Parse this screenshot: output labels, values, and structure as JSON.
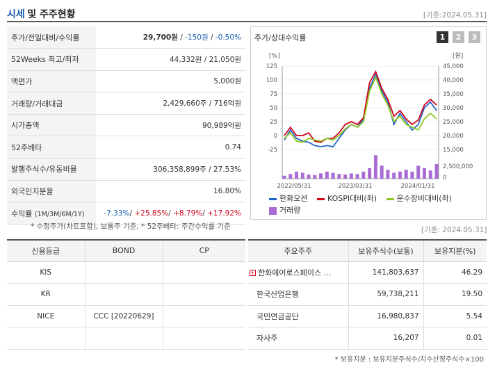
{
  "header": {
    "title_part1": "시세",
    "title_part2": "및 주주현황",
    "date": "[기준:2024.05.31]"
  },
  "price_rows": [
    {
      "label": "주가/전일대비/수익률",
      "value_a": "29,700원",
      "value_b": "-150원",
      "value_c": "-0.50%"
    },
    {
      "label": "52Weeks 최고/최저",
      "value": "44,332원 / 21,050원"
    },
    {
      "label": "액면가",
      "value": "5,000원"
    },
    {
      "label": "거래량/거래대금",
      "value": "2,429,660주 / 716억원"
    },
    {
      "label": "시가총액",
      "value": "90,989억원"
    },
    {
      "label": "52주베타",
      "value": "0.74"
    },
    {
      "label": "발행주식수/유동비율",
      "value": "306,358,899주 / 27.53%"
    },
    {
      "label": "외국인지분율",
      "value": "16.80%"
    },
    {
      "label": "수익률",
      "label_sub": "(1M/3M/6M/1Y)",
      "r1": "-7.33%",
      "r2": "+25.85%",
      "r3": "+8.79%",
      "r4": "+17.92%"
    }
  ],
  "notes": {
    "price_note": "* 수정주가(차트포함), 보통주 기준, * 52주베타: 주간수익률 기준",
    "date2": "[기준: 2024.05.31]",
    "holder_note": "* 보유지분 : 보유지분주식수/지수산정주식수×100"
  },
  "chart_panel": {
    "title": "주가/상대수익률",
    "tabs": [
      "1",
      "2",
      "3"
    ]
  },
  "chart_data": {
    "type": "line",
    "left_axis": {
      "label": "[%]",
      "ticks": [
        "125",
        "100",
        "75",
        "50",
        "25",
        "0",
        "-25"
      ],
      "range": [
        -25,
        125
      ]
    },
    "right_axis": {
      "label": "[원]",
      "ticks": [
        "45,000",
        "40,000",
        "35,000",
        "30,000",
        "25,000",
        "20,000",
        "15,000"
      ],
      "range": [
        15000,
        45000
      ]
    },
    "volume_axis": {
      "ticks": [
        "2,500,000",
        "0"
      ],
      "range": [
        0,
        5000000
      ]
    },
    "x_ticks": [
      "2022/05/31",
      "2023/03/31",
      "2024/01/31"
    ],
    "series": [
      {
        "name": "한화오션",
        "color": "#2464c8",
        "values": [
          -8,
          10,
          -5,
          -10,
          -12,
          -18,
          -20,
          -18,
          -20,
          -5,
          10,
          20,
          15,
          30,
          85,
          110,
          80,
          60,
          20,
          40,
          25,
          10,
          20,
          50,
          60,
          45
        ]
      },
      {
        "name": "KOSPI대비(좌)",
        "color": "#d0021b",
        "values": [
          0,
          15,
          0,
          0,
          5,
          -10,
          -12,
          -5,
          -5,
          5,
          20,
          25,
          20,
          32,
          95,
          115,
          85,
          65,
          35,
          45,
          30,
          20,
          28,
          55,
          65,
          55
        ]
      },
      {
        "name": "운수장비대비(좌)",
        "color": "#8cc820",
        "values": [
          -5,
          5,
          -10,
          -12,
          -5,
          -8,
          -10,
          -5,
          -8,
          0,
          12,
          20,
          15,
          25,
          80,
          105,
          75,
          55,
          25,
          35,
          20,
          15,
          10,
          30,
          40,
          30
        ]
      }
    ],
    "volume": {
      "name": "거래량",
      "color": "#a86cd4",
      "values": [
        5,
        8,
        12,
        10,
        7,
        6,
        9,
        12,
        10,
        8,
        7,
        9,
        8,
        12,
        18,
        40,
        22,
        15,
        10,
        12,
        15,
        12,
        22,
        18,
        14,
        25
      ]
    }
  },
  "credit": {
    "headers": [
      "신용등급",
      "BOND",
      "CP"
    ],
    "rows": [
      {
        "agency": "KIS",
        "bond": "",
        "cp": ""
      },
      {
        "agency": "KR",
        "bond": "",
        "cp": ""
      },
      {
        "agency": "NICE",
        "bond": "CCC  [20220629]",
        "cp": ""
      },
      {
        "agency": "",
        "bond": "",
        "cp": ""
      }
    ]
  },
  "holders": {
    "headers": [
      "주요주주",
      "보유주식수(보통)",
      "보유지분(%)"
    ],
    "rows": [
      {
        "name": "한화에어로스페이스 …",
        "shares": "141,803,637",
        "pct": "46.29"
      },
      {
        "name": "한국산업은행",
        "shares": "59,738,211",
        "pct": "19.50"
      },
      {
        "name": "국민연금공단",
        "shares": "16,980,837",
        "pct": "5.54"
      },
      {
        "name": "자사주",
        "shares": "16,207",
        "pct": "0.01"
      }
    ]
  }
}
